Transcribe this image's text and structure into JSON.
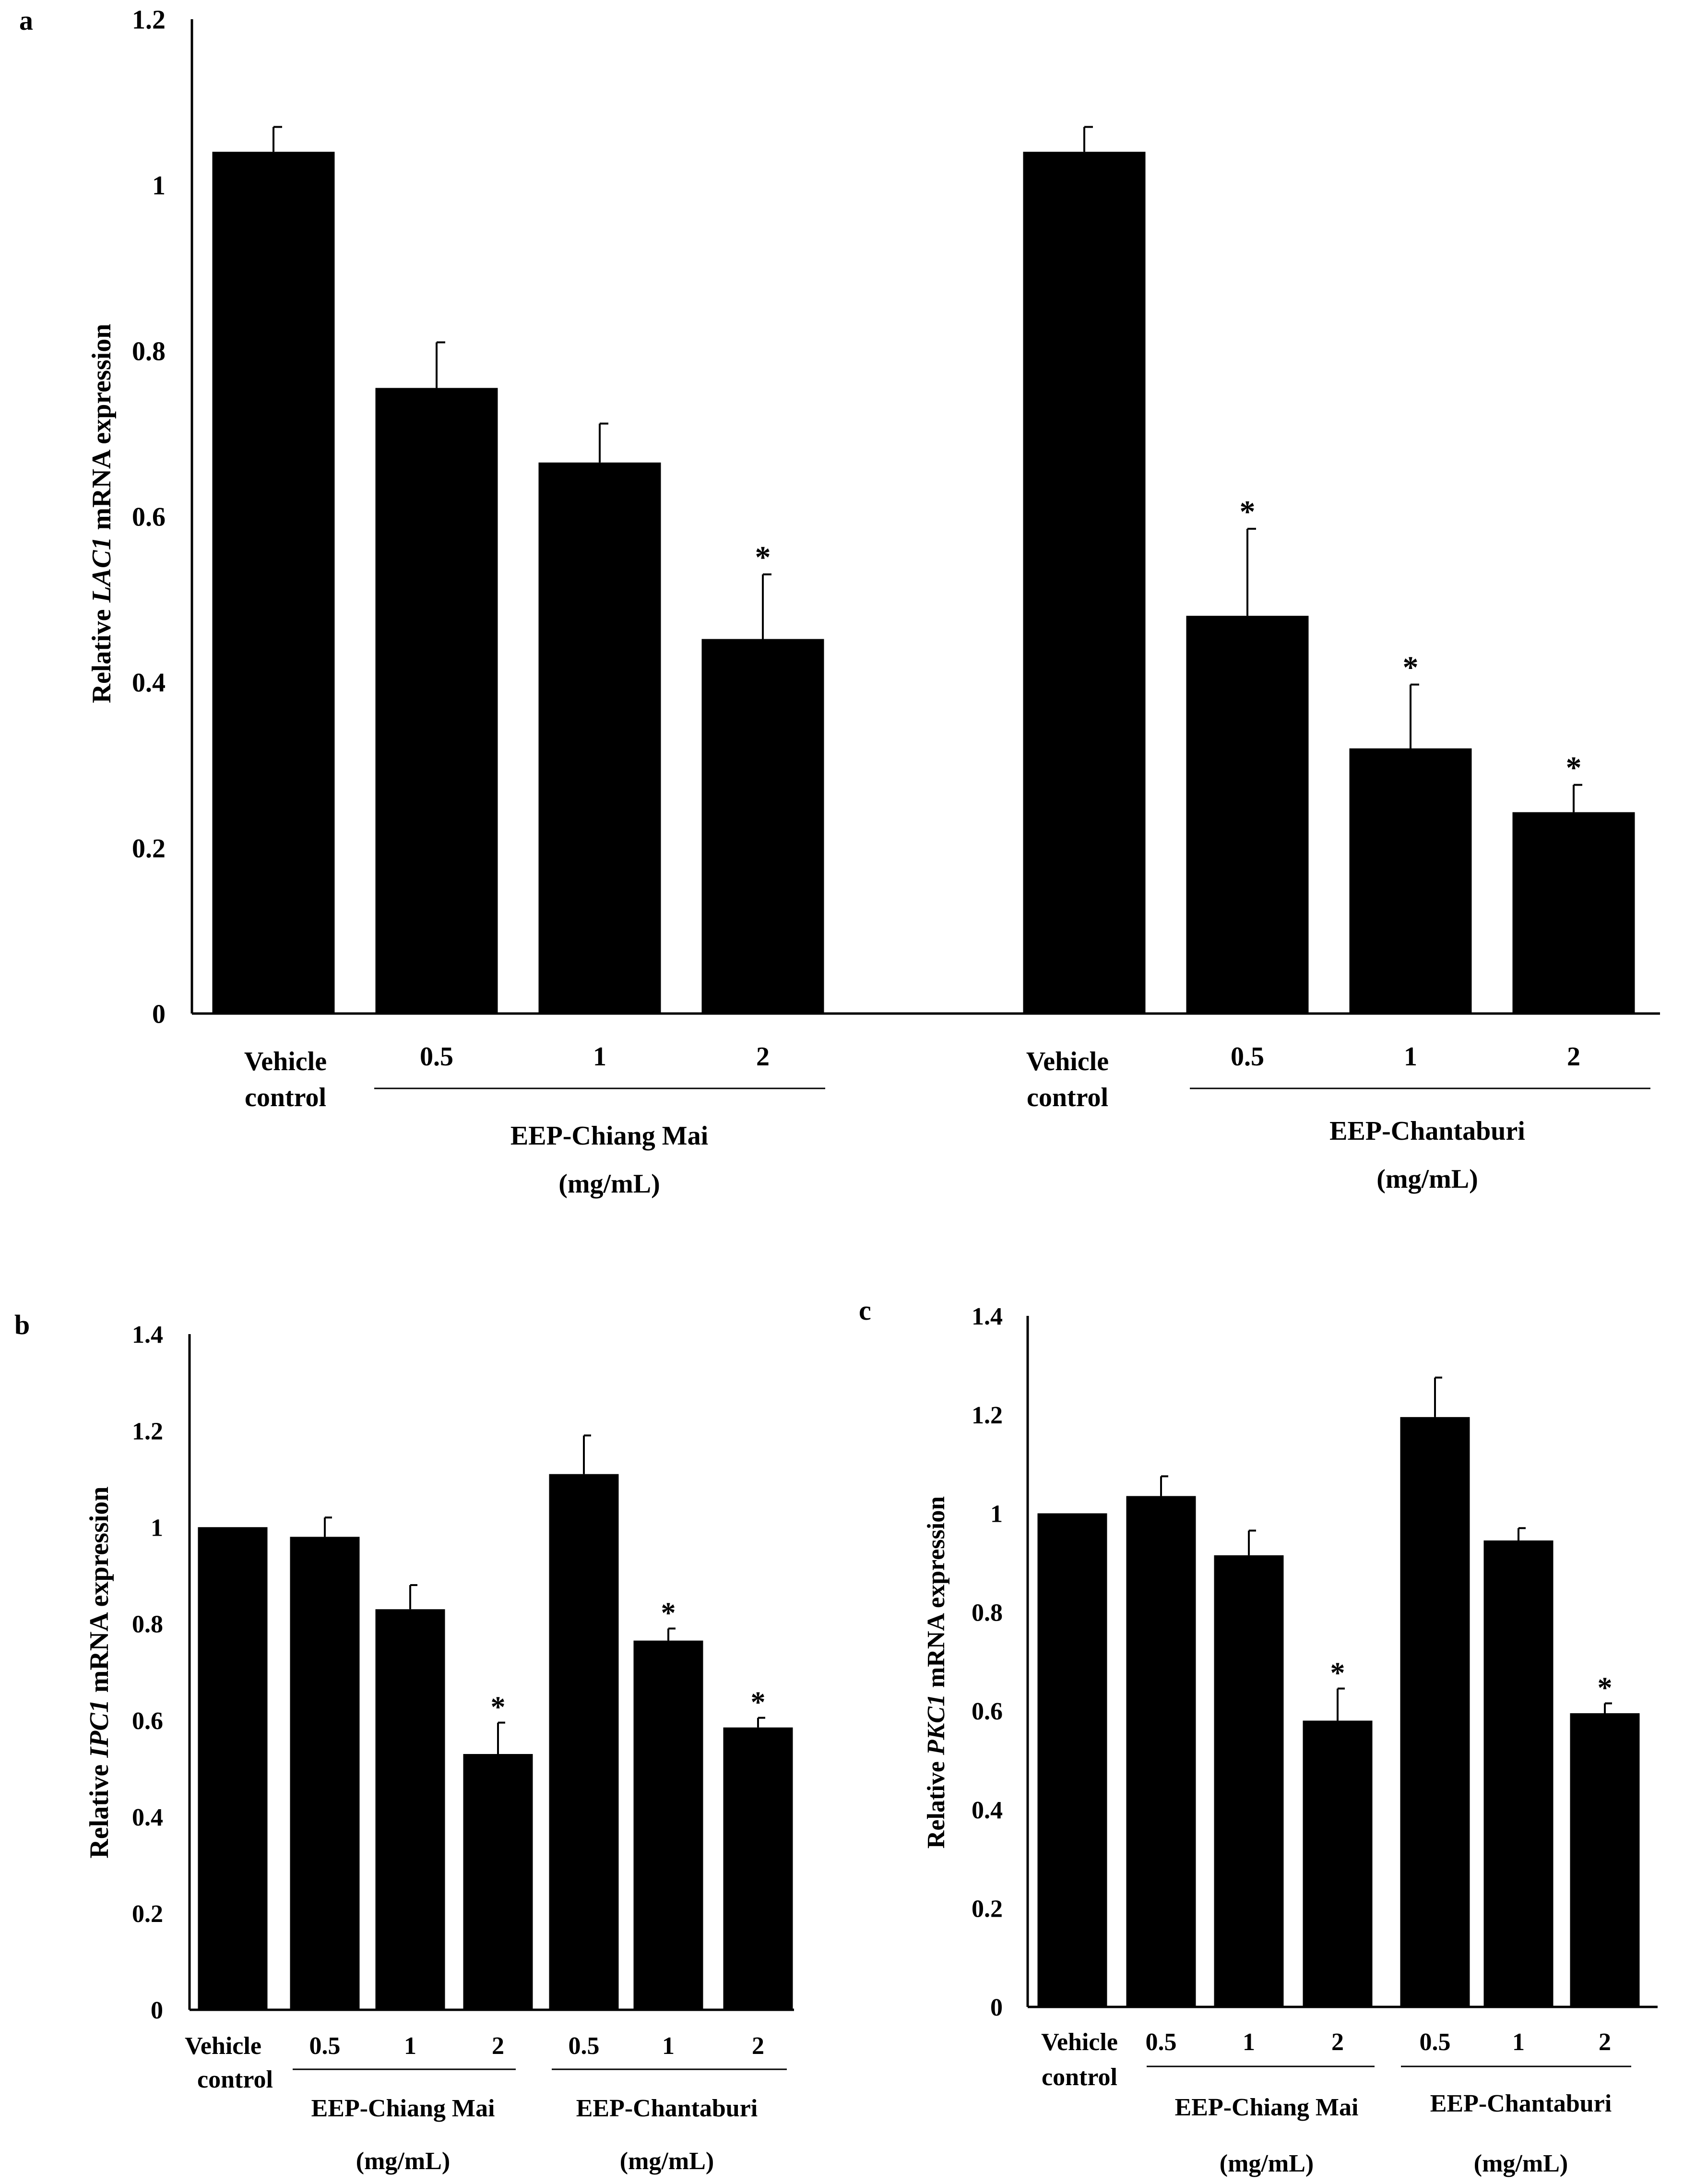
{
  "chart_data": [
    {
      "panel": "a",
      "type": "bar",
      "ylabel_prefix": "Relative ",
      "ylabel_gene": "LAC1",
      "ylabel_suffix": " mRNA expression",
      "ylim": [
        0,
        1.2
      ],
      "yticks": [
        "0",
        "0.2",
        "0.4",
        "0.6",
        "0.8",
        "1",
        "1.2"
      ],
      "bar_color": "#000000",
      "bars": [
        {
          "label": "Vehicle control",
          "value": 1.04,
          "error": 0.03,
          "sig": ""
        },
        {
          "label": "0.5",
          "value": 0.755,
          "error": 0.055,
          "sig": ""
        },
        {
          "label": "1",
          "value": 0.665,
          "error": 0.047,
          "sig": ""
        },
        {
          "label": "2",
          "value": 0.452,
          "error": 0.078,
          "sig": "*"
        },
        {
          "label": "Vehicle control",
          "value": 1.04,
          "error": 0.03,
          "sig": ""
        },
        {
          "label": "0.5",
          "value": 0.48,
          "error": 0.105,
          "sig": "*"
        },
        {
          "label": "1",
          "value": 0.32,
          "error": 0.077,
          "sig": "*"
        },
        {
          "label": "2",
          "value": 0.243,
          "error": 0.033,
          "sig": "*"
        }
      ],
      "vehicle_line1": "Vehicle",
      "vehicle_line2": "control",
      "groups": [
        {
          "name": "EEP-Chiang Mai",
          "unit": "(mg/mL)"
        },
        {
          "name": "EEP-Chantaburi",
          "unit": "(mg/mL)"
        }
      ]
    },
    {
      "panel": "b",
      "type": "bar",
      "ylabel_prefix": "Relative ",
      "ylabel_gene": "IPC1",
      "ylabel_suffix": " mRNA expression",
      "ylim": [
        0,
        1.4
      ],
      "yticks": [
        "0",
        "0.2",
        "0.4",
        "0.6",
        "0.8",
        "1",
        "1.2",
        "1.4"
      ],
      "bar_color": "#000000",
      "bars": [
        {
          "label": "Vehicle control",
          "value": 1.0,
          "error": 0.0,
          "sig": ""
        },
        {
          "label": "0.5",
          "value": 0.98,
          "error": 0.04,
          "sig": ""
        },
        {
          "label": "1",
          "value": 0.83,
          "error": 0.05,
          "sig": ""
        },
        {
          "label": "2",
          "value": 0.53,
          "error": 0.065,
          "sig": "*"
        },
        {
          "label": "0.5",
          "value": 1.11,
          "error": 0.08,
          "sig": ""
        },
        {
          "label": "1",
          "value": 0.765,
          "error": 0.025,
          "sig": "*"
        },
        {
          "label": "2",
          "value": 0.585,
          "error": 0.02,
          "sig": "*"
        }
      ],
      "vehicle_line1": "Vehicle",
      "vehicle_line2": "control",
      "groups": [
        {
          "name": "EEP-Chiang Mai",
          "unit": "(mg/mL)"
        },
        {
          "name": "EEP-Chantaburi",
          "unit": "(mg/mL)"
        }
      ]
    },
    {
      "panel": "c",
      "type": "bar",
      "ylabel_prefix": "Relative ",
      "ylabel_gene": "PKC1",
      "ylabel_suffix": " mRNA expression",
      "ylim": [
        0,
        1.4
      ],
      "yticks": [
        "0",
        "0.2",
        "0.4",
        "0.6",
        "0.8",
        "1",
        "1.2",
        "1.4"
      ],
      "bar_color": "#000000",
      "bars": [
        {
          "label": "Vehicle control",
          "value": 1.0,
          "error": 0.0,
          "sig": ""
        },
        {
          "label": "0.5",
          "value": 1.035,
          "error": 0.04,
          "sig": ""
        },
        {
          "label": "1",
          "value": 0.915,
          "error": 0.05,
          "sig": ""
        },
        {
          "label": "2",
          "value": 0.58,
          "error": 0.065,
          "sig": "*"
        },
        {
          "label": "0.5",
          "value": 1.195,
          "error": 0.08,
          "sig": ""
        },
        {
          "label": "1",
          "value": 0.945,
          "error": 0.025,
          "sig": ""
        },
        {
          "label": "2",
          "value": 0.595,
          "error": 0.02,
          "sig": "*"
        }
      ],
      "vehicle_line1": "Vehicle",
      "vehicle_line2": "control",
      "groups": [
        {
          "name": "EEP-Chiang Mai",
          "unit": "(mg/mL)"
        },
        {
          "name": "EEP-Chantaburi",
          "unit": "(mg/mL)"
        }
      ]
    }
  ]
}
